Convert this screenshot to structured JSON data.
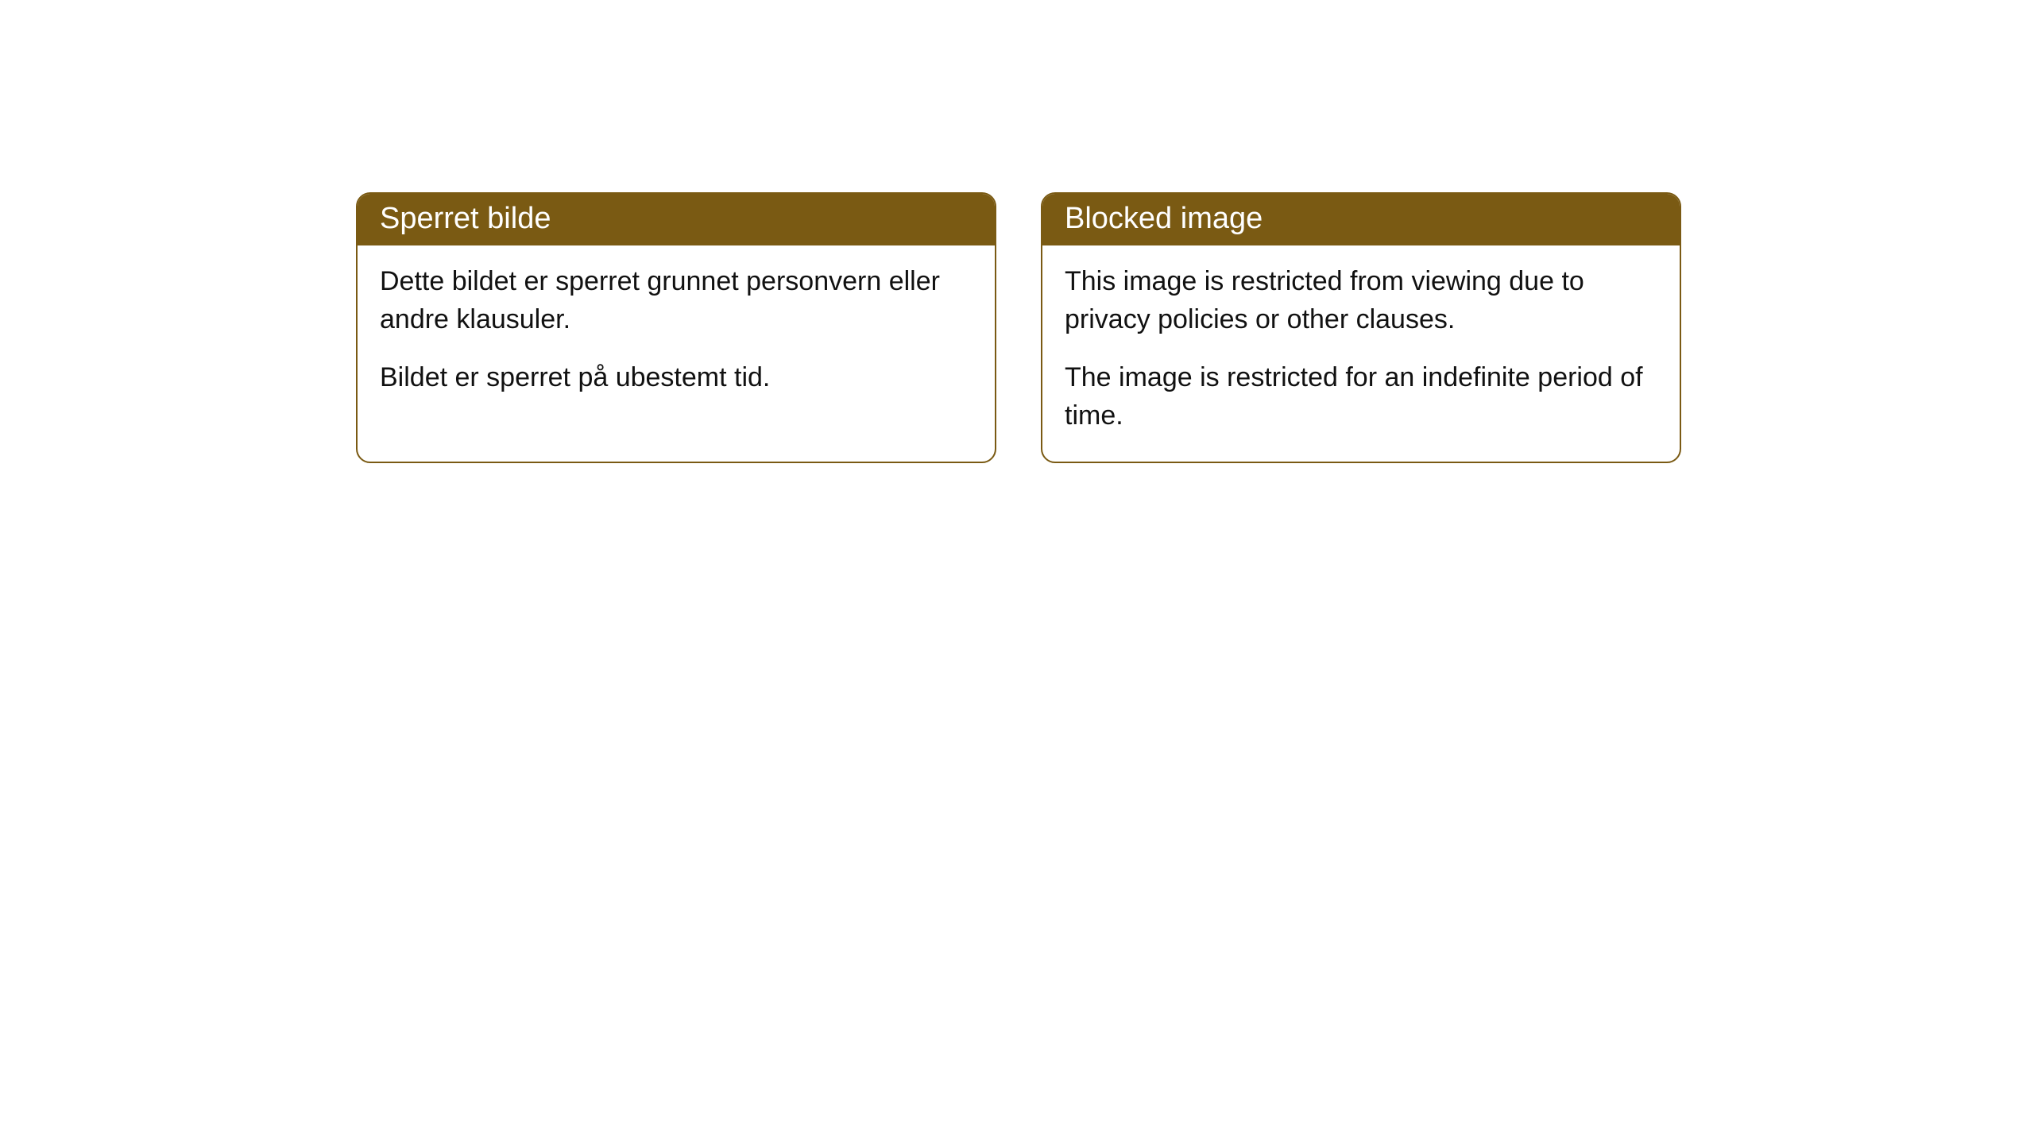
{
  "cards": [
    {
      "title": "Sperret bilde",
      "paragraph1": "Dette bildet er sperret grunnet personvern eller andre klausuler.",
      "paragraph2": "Bildet er sperret på ubestemt tid."
    },
    {
      "title": "Blocked image",
      "paragraph1": "This image is restricted from viewing due to privacy policies or other clauses.",
      "paragraph2": "The image is restricted for an indefinite period of time."
    }
  ],
  "colors": {
    "header_bg": "#7a5a13",
    "header_text": "#ffffff",
    "body_text": "#111111",
    "card_bg": "#ffffff",
    "border": "#7a5a13"
  }
}
